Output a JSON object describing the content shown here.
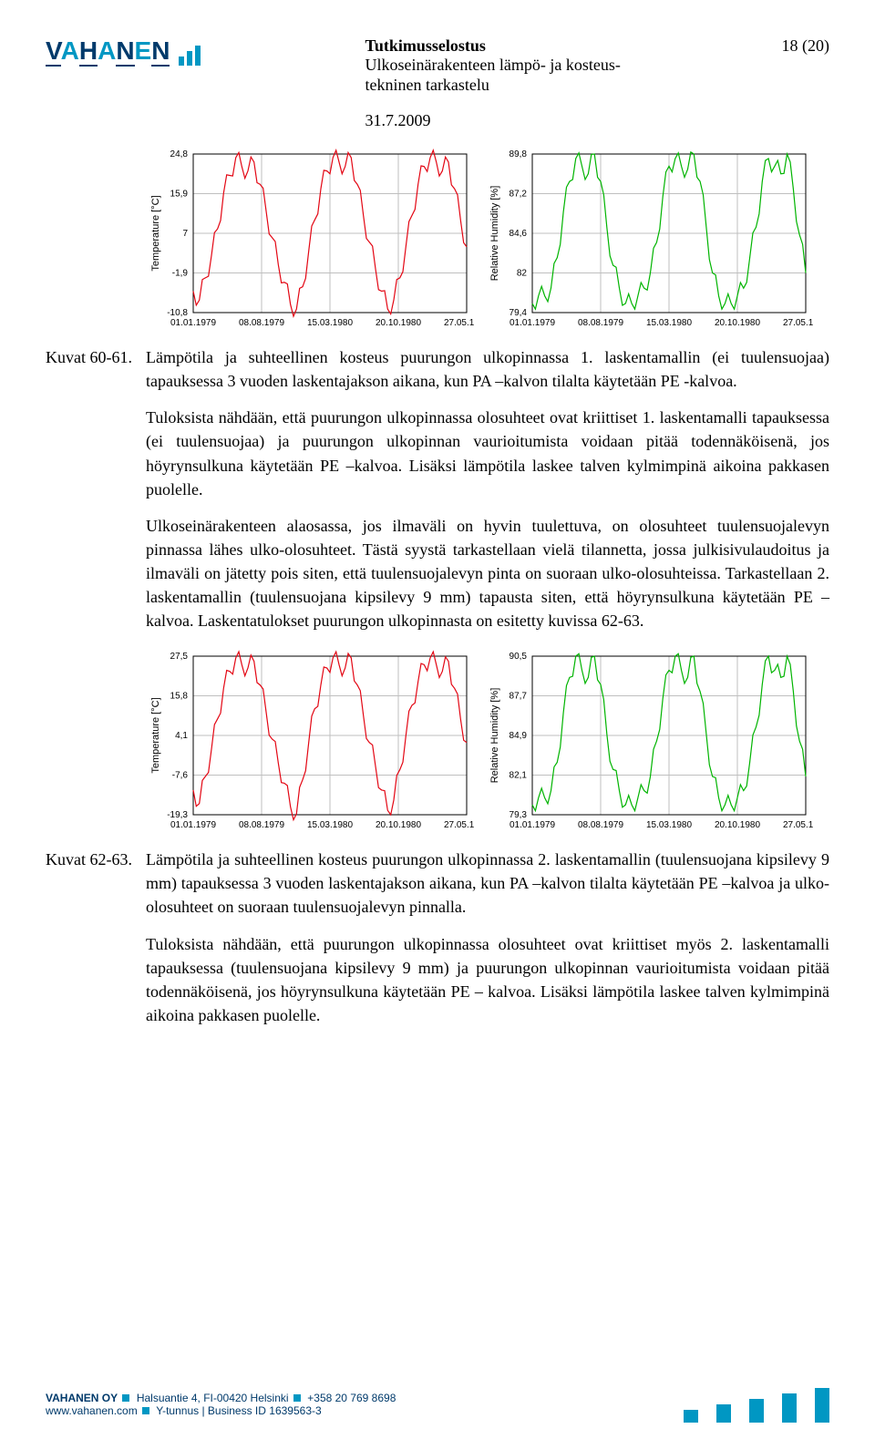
{
  "header": {
    "logo_text_parts": [
      "V",
      "A",
      "H",
      "A",
      "N",
      "E",
      "N"
    ],
    "doc_title": "Tutkimusselostus",
    "doc_sub1": "Ulkoseinärakenteen lämpö- ja kosteus-",
    "doc_sub2": "tekninen tarkastelu",
    "doc_date": "31.7.2009",
    "page_num": "18 (20)"
  },
  "figset1": {
    "label": "Kuvat 60-61.",
    "caption": "Lämpötila ja suhteellinen kosteus puurungon ulkopinnassa 1. laskentamallin (ei tuulensuojaa) tapauksessa 3 vuoden laskentajakson aikana, kun PA –kalvon tilalta käytetään PE -kalvoa."
  },
  "para1": "Tuloksista nähdään, että puurungon ulkopinnassa olosuhteet ovat kriittiset 1. laskentamalli tapauksessa (ei tuulensuojaa) ja puurungon ulkopinnan vaurioitumista voidaan pitää todennäköisenä, jos höyrynsulkuna käytetään PE –kalvoa. Lisäksi lämpötila laskee talven kylmimpinä aikoina pakkasen puolelle.",
  "para2": "Ulkoseinärakenteen alaosassa, jos ilmaväli on hyvin tuulettuva, on olosuhteet tuulensuojalevyn pinnassa lähes ulko-olosuhteet. Tästä syystä tarkastellaan vielä tilannetta, jossa julkisivulaudoitus ja ilmaväli on jätetty pois siten, että tuulensuojalevyn pinta on suoraan ulko-olosuhteissa. Tarkastellaan 2. laskentamallin (tuulensuojana kipsilevy 9 mm) tapausta siten, että höyrynsulkuna käytetään PE –kalvoa. Laskentatulokset puurungon ulkopinnasta on esitetty kuvissa 62-63.",
  "figset2": {
    "label": "Kuvat 62-63.",
    "caption": "Lämpötila ja suhteellinen kosteus puurungon ulkopinnassa 2. laskentamallin (tuulensuojana kipsilevy 9 mm) tapauksessa 3 vuoden laskentajakson aikana, kun PA –kalvon tilalta käytetään PE –kalvoa ja ulko-olosuhteet on suoraan tuulensuojalevyn pinnalla."
  },
  "para3": "Tuloksista nähdään, että puurungon ulkopinnassa olosuhteet ovat kriittiset myös 2. laskentamalli tapauksessa (tuulensuojana kipsilevy 9 mm) ja puurungon ulkopinnan vaurioitumista voidaan pitää todennäköisenä, jos höyrynsulkuna käytetään PE – kalvoa. Lisäksi lämpötila laskee talven kylmimpinä aikoina pakkasen puolelle.",
  "chart_tmp1": {
    "type": "line",
    "ylabel": "Temperature [°C]",
    "yticks": [
      "24,8",
      "15,9",
      "7",
      "-1,9",
      "-10,8"
    ],
    "xticks": [
      "01.01.1979",
      "08.08.1979",
      "15.03.1980",
      "20.10.1980",
      "27.05.1981"
    ],
    "line_color": "#e30613",
    "grid_color": "#bfbfbf",
    "axis_color": "#000",
    "ylim": [
      -10.8,
      24.8
    ],
    "series": [
      -6,
      -8,
      -3,
      2,
      8,
      16,
      20,
      24,
      22,
      21,
      23,
      18,
      12,
      6,
      0,
      -4,
      -9,
      -10,
      -5,
      3,
      10,
      17,
      21,
      24,
      23,
      22,
      24,
      18,
      11,
      5,
      -1,
      -6,
      -10,
      -8,
      -3,
      4,
      11,
      18,
      22,
      24,
      23,
      21,
      23,
      17,
      10,
      4
    ]
  },
  "chart_rh1": {
    "type": "line",
    "ylabel": "Relative Humidity [%]",
    "yticks": [
      "89,8",
      "87,2",
      "84,6",
      "82",
      "79,4"
    ],
    "xticks": [
      "01.01.1979",
      "08.08.1979",
      "15.03.1980",
      "20.10.1980",
      "27.05.1981"
    ],
    "line_color": "#00b400",
    "grid_color": "#bfbfbf",
    "axis_color": "#000",
    "ylim": [
      79.4,
      89.8
    ],
    "series": [
      80,
      80.5,
      80.5,
      81,
      83,
      86,
      88,
      89.5,
      89,
      88.5,
      89.8,
      88,
      85,
      82.5,
      81,
      80,
      80,
      80.5,
      81,
      82,
      84,
      87,
      89,
      89.5,
      89,
      88.8,
      89.8,
      88,
      85,
      82,
      80.5,
      80,
      80,
      80.5,
      81,
      83,
      85,
      88,
      89.5,
      89,
      88.5,
      89.8,
      87.5,
      84.5,
      82
    ]
  },
  "chart_tmp2": {
    "type": "line",
    "ylabel": "Temperature [°C]",
    "yticks": [
      "27,5",
      "15,8",
      "4,1",
      "-7,6",
      "-19,3"
    ],
    "xticks": [
      "01.01.1979",
      "08.08.1979",
      "15.03.1980",
      "20.10.1980",
      "27.05.1981"
    ],
    "line_color": "#e30613",
    "grid_color": "#bfbfbf",
    "axis_color": "#000",
    "ylim": [
      -19.3,
      27.5
    ],
    "series": [
      -12,
      -16,
      -8,
      0,
      9,
      18,
      23,
      27,
      25,
      24,
      26,
      19,
      11,
      3,
      -4,
      -10,
      -17,
      -19,
      -9,
      2,
      12,
      19,
      24,
      27,
      25,
      24,
      27,
      19,
      10,
      2,
      -5,
      -12,
      -18,
      -15,
      -6,
      4,
      13,
      20,
      25,
      27,
      25,
      23,
      26,
      18,
      9,
      2
    ]
  },
  "chart_rh2": {
    "type": "line",
    "ylabel": "Relative Humidity [%]",
    "yticks": [
      "90,5",
      "87,7",
      "84,9",
      "82,1",
      "79,3"
    ],
    "xticks": [
      "01.01.1979",
      "08.08.1979",
      "15.03.1980",
      "20.10.1980",
      "27.05.1981"
    ],
    "line_color": "#00b400",
    "grid_color": "#bfbfbf",
    "axis_color": "#000",
    "ylim": [
      79.3,
      90.5
    ],
    "series": [
      80,
      80.5,
      80.5,
      81,
      83,
      86.5,
      89,
      90.5,
      89.5,
      89,
      90.5,
      88.5,
      85,
      82.5,
      81,
      80,
      80,
      80.5,
      81,
      82,
      84.5,
      87.5,
      89.5,
      90.5,
      89.5,
      89,
      90.5,
      88,
      85,
      82,
      80.5,
      80,
      80,
      80.5,
      81,
      83,
      85.5,
      88.5,
      90.5,
      89.5,
      89,
      90.5,
      88,
      84.5,
      82
    ]
  },
  "footer": {
    "company": "VAHANEN OY",
    "addr": "Halsuantie 4, FI-00420 Helsinki",
    "tel": "+358 20 769 8698",
    "web": "www.vahanen.com",
    "biz_label": "Y-tunnus | Business ID",
    "biz_id": "1639563-3"
  }
}
